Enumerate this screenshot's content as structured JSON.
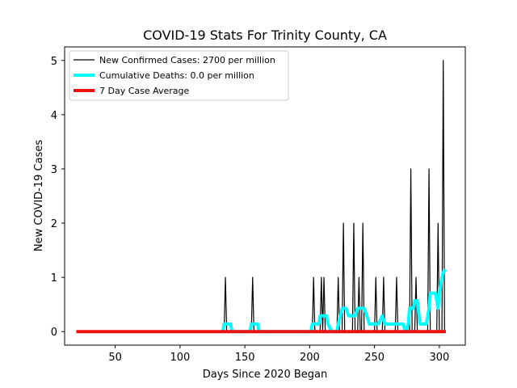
{
  "chart_data": {
    "type": "line",
    "title": "COVID-19 Stats For Trinity County, CA",
    "xlabel": "Days Since 2020 Began",
    "ylabel": "New COVID-19 Cases",
    "xlim": [
      11,
      320
    ],
    "ylim": [
      -0.25,
      5.25
    ],
    "xticks": [
      50,
      100,
      150,
      200,
      250,
      300
    ],
    "yticks": [
      0,
      1,
      2,
      3,
      4,
      5
    ],
    "legend_position": "upper-left",
    "series": [
      {
        "name": "New Confirmed Cases: 2700 per million",
        "color": "#000000",
        "style": "thin-line",
        "points": [
          [
            20,
            0
          ],
          [
            134,
            0
          ],
          [
            135,
            1
          ],
          [
            136,
            0
          ],
          [
            155,
            0
          ],
          [
            156,
            1
          ],
          [
            157,
            0
          ],
          [
            202,
            0
          ],
          [
            203,
            1
          ],
          [
            204,
            0
          ],
          [
            208,
            0
          ],
          [
            209,
            1
          ],
          [
            210,
            0
          ],
          [
            211,
            1
          ],
          [
            212,
            0
          ],
          [
            221,
            0
          ],
          [
            222,
            1
          ],
          [
            223,
            0
          ],
          [
            225,
            0
          ],
          [
            226,
            2
          ],
          [
            227,
            0
          ],
          [
            233,
            0
          ],
          [
            234,
            2
          ],
          [
            235,
            0
          ],
          [
            237,
            0
          ],
          [
            238,
            1
          ],
          [
            239,
            0
          ],
          [
            240,
            0
          ],
          [
            241,
            2
          ],
          [
            242,
            0
          ],
          [
            250,
            0
          ],
          [
            251,
            1
          ],
          [
            252,
            0
          ],
          [
            256,
            0
          ],
          [
            257,
            1
          ],
          [
            258,
            0
          ],
          [
            266,
            0
          ],
          [
            267,
            1
          ],
          [
            268,
            0
          ],
          [
            277,
            0
          ],
          [
            278,
            3
          ],
          [
            279,
            0
          ],
          [
            281,
            0
          ],
          [
            282,
            1
          ],
          [
            283,
            0
          ],
          [
            291,
            0
          ],
          [
            292,
            3
          ],
          [
            293,
            0
          ],
          [
            298,
            0
          ],
          [
            299,
            2
          ],
          [
            300,
            0
          ],
          [
            302,
            0
          ],
          [
            303,
            5
          ],
          [
            304,
            0
          ],
          [
            305,
            0
          ]
        ]
      },
      {
        "name": "Cumulative Deaths: 0.0 per million",
        "color": "#00ffff",
        "style": "thick-line",
        "points": [
          [
            133,
            0
          ],
          [
            134,
            0.14
          ],
          [
            139,
            0.14
          ],
          [
            140,
            0
          ],
          [
            154,
            0
          ],
          [
            155,
            0.14
          ],
          [
            160,
            0.14
          ],
          [
            161,
            0
          ],
          [
            201,
            0
          ],
          [
            202,
            0.14
          ],
          [
            207,
            0.14
          ],
          [
            208,
            0.29
          ],
          [
            212,
            0.29
          ],
          [
            213,
            0.29
          ],
          [
            214,
            0.14
          ],
          [
            217,
            0
          ],
          [
            221,
            0
          ],
          [
            222,
            0.14
          ],
          [
            225,
            0.43
          ],
          [
            228,
            0.43
          ],
          [
            230,
            0.29
          ],
          [
            232,
            0.29
          ],
          [
            235,
            0.29
          ],
          [
            237,
            0.43
          ],
          [
            242,
            0.43
          ],
          [
            244,
            0.29
          ],
          [
            246,
            0.14
          ],
          [
            250,
            0.14
          ],
          [
            253,
            0.14
          ],
          [
            256,
            0.29
          ],
          [
            258,
            0.14
          ],
          [
            263,
            0.14
          ],
          [
            265,
            0.14
          ],
          [
            267,
            0.14
          ],
          [
            272,
            0.14
          ],
          [
            274,
            0
          ],
          [
            276,
            0.14
          ],
          [
            277,
            0.43
          ],
          [
            280,
            0.43
          ],
          [
            281,
            0.57
          ],
          [
            283,
            0.57
          ],
          [
            285,
            0.14
          ],
          [
            290,
            0.14
          ],
          [
            292,
            0.43
          ],
          [
            293,
            0.71
          ],
          [
            297,
            0.71
          ],
          [
            299,
            0.43
          ],
          [
            300,
            0.71
          ],
          [
            302,
            1.0
          ],
          [
            303,
            1.1
          ],
          [
            305,
            1.14
          ]
        ]
      },
      {
        "name": "7 Day Case Average",
        "color": "#ee1111",
        "style": "thick-line",
        "points": [
          [
            20,
            0
          ],
          [
            305,
            0
          ]
        ]
      }
    ]
  }
}
